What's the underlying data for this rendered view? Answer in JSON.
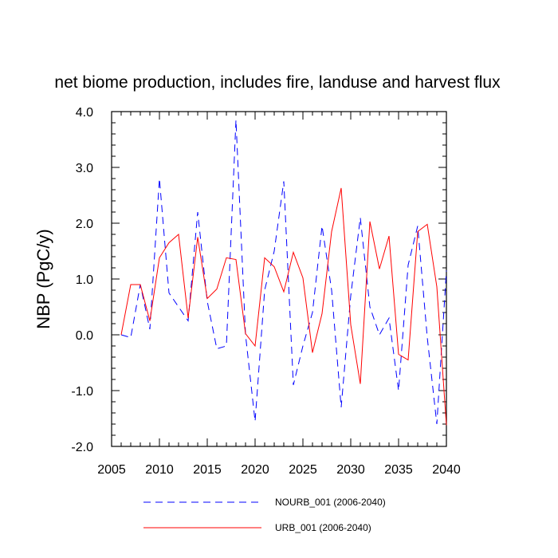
{
  "chart_data": {
    "type": "line",
    "title": "net biome production, includes fire, landuse and harvest flux",
    "ylabel": "NBP  (PgC/y)",
    "xlabel": "",
    "xlim": [
      2005,
      2040
    ],
    "ylim": [
      -2.0,
      4.0
    ],
    "x_ticks": [
      2005,
      2010,
      2015,
      2020,
      2025,
      2030,
      2035,
      2040
    ],
    "x_tick_labels": [
      "2005",
      "2010",
      "2015",
      "2020",
      "2025",
      "2030",
      "2035",
      "2040"
    ],
    "y_ticks": [
      -2.0,
      -1.0,
      0.0,
      1.0,
      2.0,
      3.0,
      4.0
    ],
    "y_tick_labels": [
      "-2.0",
      "-1.0",
      "0.0",
      "1.0",
      "2.0",
      "3.0",
      "4.0"
    ],
    "grid": false,
    "legend_position": "bottom",
    "x": [
      2006,
      2007,
      2008,
      2009,
      2010,
      2011,
      2012,
      2013,
      2014,
      2015,
      2016,
      2017,
      2018,
      2019,
      2020,
      2021,
      2022,
      2023,
      2024,
      2025,
      2026,
      2027,
      2028,
      2029,
      2030,
      2031,
      2032,
      2033,
      2034,
      2035,
      2036,
      2037,
      2038,
      2039,
      2040
    ],
    "series": [
      {
        "name": "NOURB_001 (2006-2040)",
        "color": "#0000ff",
        "style": "dashed",
        "values": [
          0.0,
          -0.05,
          0.9,
          0.1,
          2.8,
          0.75,
          0.5,
          0.25,
          2.2,
          0.6,
          -0.25,
          -0.2,
          3.85,
          0.0,
          -1.55,
          0.8,
          1.5,
          2.75,
          -0.9,
          -0.2,
          0.4,
          1.95,
          0.8,
          -1.3,
          0.7,
          2.1,
          0.5,
          0.0,
          0.3,
          -1.0,
          1.25,
          1.95,
          -0.05,
          -1.6,
          1.15
        ]
      },
      {
        "name": "URB_001 (2006-2040)",
        "color": "#ff0000",
        "style": "solid",
        "values": [
          0.0,
          0.9,
          0.9,
          0.25,
          1.38,
          1.65,
          1.8,
          0.3,
          1.75,
          0.65,
          0.82,
          1.38,
          1.35,
          0.02,
          -0.2,
          1.38,
          1.22,
          0.77,
          1.48,
          1.02,
          -0.32,
          0.38,
          1.85,
          2.63,
          0.18,
          -0.88,
          2.03,
          1.18,
          1.77,
          -0.35,
          -0.45,
          1.85,
          1.98,
          0.86,
          -1.62
        ]
      }
    ]
  }
}
